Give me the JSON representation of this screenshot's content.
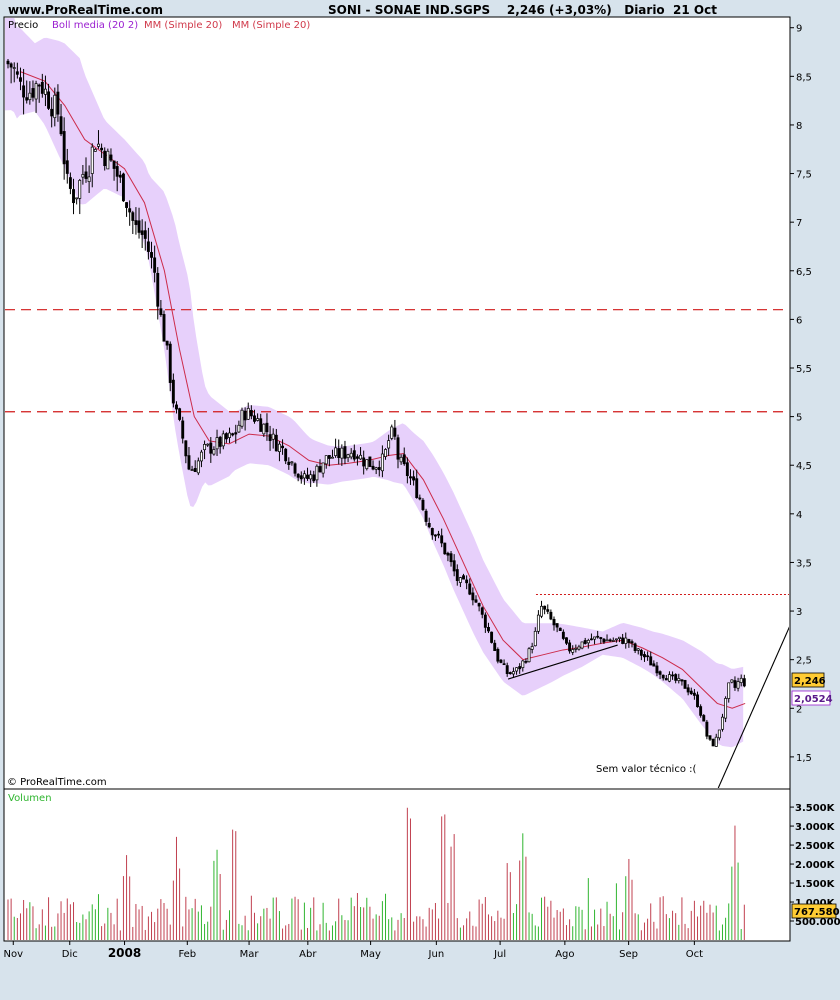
{
  "header": {
    "site": "www.ProRealTime.com",
    "title": "SONI - SONAE IND.SGPS    2,246 (+3,03%)   Diario  21 Oct"
  },
  "price_panel": {
    "legend": [
      {
        "label": "Precio",
        "color": "#000000"
      },
      {
        "label": "Boll media (20 2)",
        "color": "#9a1fd0"
      },
      {
        "label": "MM (Simple 20)",
        "color": "#d0394a"
      },
      {
        "label": "MM (Simple 20)",
        "color": "#d0394a"
      }
    ],
    "copyright": "© ProRealTime.com",
    "note": "Sem valor técnico :(",
    "last_price_label": "2,246",
    "ma_value_label": "2,0524"
  },
  "volume_panel": {
    "label": "Volumen",
    "last_volume_label": "767.580"
  },
  "colors": {
    "bollinger_band": "#e7d0fb",
    "moving_average": "#cc2b4a",
    "resistance_lines": "#d11a1a",
    "volume_up": "#2fb52f",
    "volume_down": "#c0404f",
    "last_price_badge": "#ffcc33",
    "ma_badge": "#ffffff"
  },
  "chart_data": [
    {
      "type": "candlestick",
      "y_ticks": [
        "9",
        "8,5",
        "8",
        "7,5",
        "7",
        "6,5",
        "6",
        "5,5",
        "5",
        "4,5",
        "4",
        "3,5",
        "3",
        "2,5",
        "2",
        "1,5"
      ],
      "y_tick_values": [
        9,
        8.5,
        8,
        7.5,
        7,
        6.5,
        6,
        5.5,
        5,
        4.5,
        4,
        3.5,
        3,
        2.5,
        2,
        1.5
      ],
      "ylim": [
        1.18,
        9.1
      ],
      "x_ticks": [
        "Nov",
        "Dic",
        "2008",
        "Feb",
        "Mar",
        "Abr",
        "May",
        "Jun",
        "Jul",
        "Ago",
        "Sep",
        "Oct"
      ],
      "x_tick_positions": [
        0.083,
        0.65,
        1.2,
        1.83,
        2.45,
        3.04,
        3.67,
        4.33,
        4.97,
        5.62,
        6.26,
        6.92
      ],
      "x_range_months": [
        0.0,
        7.88
      ],
      "horizontal_lines": [
        {
          "y": 6.1,
          "style": "dashed"
        },
        {
          "y": 5.05,
          "style": "dashed"
        },
        {
          "y": 3.17,
          "style": "dotted",
          "from_month": 5.33
        }
      ],
      "trend_lines": [
        {
          "from": [
            5.05,
            2.3
          ],
          "to": [
            6.15,
            2.65
          ]
        },
        {
          "from": [
            7.16,
            1.18
          ],
          "to": [
            7.88,
            2.85
          ]
        }
      ],
      "close_path": [
        [
          0.0,
          8.65
        ],
        [
          0.08,
          8.6
        ],
        [
          0.15,
          8.4
        ],
        [
          0.25,
          8.35
        ],
        [
          0.35,
          8.45
        ],
        [
          0.45,
          8.25
        ],
        [
          0.55,
          8.1
        ],
        [
          0.62,
          7.4
        ],
        [
          0.7,
          7.25
        ],
        [
          0.78,
          7.5
        ],
        [
          0.85,
          7.6
        ],
        [
          0.9,
          7.85
        ],
        [
          1.0,
          7.7
        ],
        [
          1.1,
          7.55
        ],
        [
          1.2,
          7.3
        ],
        [
          1.3,
          6.95
        ],
        [
          1.4,
          6.85
        ],
        [
          1.5,
          6.5
        ],
        [
          1.55,
          6.1
        ],
        [
          1.62,
          5.7
        ],
        [
          1.7,
          5.1
        ],
        [
          1.78,
          4.8
        ],
        [
          1.85,
          4.45
        ],
        [
          1.92,
          4.5
        ],
        [
          2.0,
          4.65
        ],
        [
          2.1,
          4.7
        ],
        [
          2.2,
          4.75
        ],
        [
          2.3,
          4.8
        ],
        [
          2.4,
          5.05
        ],
        [
          2.5,
          5.0
        ],
        [
          2.6,
          4.9
        ],
        [
          2.7,
          4.75
        ],
        [
          2.8,
          4.65
        ],
        [
          2.9,
          4.5
        ],
        [
          3.0,
          4.35
        ],
        [
          3.1,
          4.4
        ],
        [
          3.2,
          4.55
        ],
        [
          3.3,
          4.6
        ],
        [
          3.4,
          4.62
        ],
        [
          3.5,
          4.65
        ],
        [
          3.6,
          4.55
        ],
        [
          3.7,
          4.5
        ],
        [
          3.8,
          4.55
        ],
        [
          3.85,
          4.75
        ],
        [
          3.9,
          4.85
        ],
        [
          3.95,
          4.55
        ],
        [
          4.05,
          4.4
        ],
        [
          4.15,
          4.2
        ],
        [
          4.25,
          3.9
        ],
        [
          4.35,
          3.75
        ],
        [
          4.45,
          3.55
        ],
        [
          4.55,
          3.3
        ],
        [
          4.65,
          3.25
        ],
        [
          4.75,
          3.05
        ],
        [
          4.85,
          2.8
        ],
        [
          4.95,
          2.5
        ],
        [
          5.05,
          2.35
        ],
        [
          5.15,
          2.4
        ],
        [
          5.25,
          2.55
        ],
        [
          5.32,
          2.75
        ],
        [
          5.38,
          3.05
        ],
        [
          5.45,
          2.95
        ],
        [
          5.55,
          2.8
        ],
        [
          5.65,
          2.6
        ],
        [
          5.75,
          2.65
        ],
        [
          5.85,
          2.7
        ],
        [
          5.95,
          2.72
        ],
        [
          6.05,
          2.7
        ],
        [
          6.15,
          2.7
        ],
        [
          6.25,
          2.7
        ],
        [
          6.32,
          2.6
        ],
        [
          6.4,
          2.55
        ],
        [
          6.5,
          2.45
        ],
        [
          6.6,
          2.35
        ],
        [
          6.7,
          2.3
        ],
        [
          6.8,
          2.25
        ],
        [
          6.9,
          2.15
        ],
        [
          6.95,
          2.05
        ],
        [
          7.0,
          1.9
        ],
        [
          7.05,
          1.7
        ],
        [
          7.1,
          1.62
        ],
        [
          7.15,
          1.7
        ],
        [
          7.22,
          2.0
        ],
        [
          7.28,
          2.3
        ],
        [
          7.32,
          2.2
        ],
        [
          7.38,
          2.3
        ],
        [
          7.43,
          2.25
        ]
      ],
      "moving_average_path": [
        [
          0.15,
          8.55
        ],
        [
          0.4,
          8.45
        ],
        [
          0.6,
          8.2
        ],
        [
          0.8,
          7.85
        ],
        [
          1.0,
          7.7
        ],
        [
          1.2,
          7.55
        ],
        [
          1.4,
          7.2
        ],
        [
          1.6,
          6.5
        ],
        [
          1.75,
          5.7
        ],
        [
          1.9,
          5.0
        ],
        [
          2.05,
          4.75
        ],
        [
          2.25,
          4.72
        ],
        [
          2.45,
          4.82
        ],
        [
          2.65,
          4.8
        ],
        [
          2.85,
          4.7
        ],
        [
          3.05,
          4.55
        ],
        [
          3.25,
          4.5
        ],
        [
          3.45,
          4.52
        ],
        [
          3.65,
          4.55
        ],
        [
          3.85,
          4.6
        ],
        [
          4.0,
          4.62
        ],
        [
          4.2,
          4.35
        ],
        [
          4.4,
          3.95
        ],
        [
          4.6,
          3.5
        ],
        [
          4.8,
          3.05
        ],
        [
          5.0,
          2.7
        ],
        [
          5.2,
          2.5
        ],
        [
          5.4,
          2.55
        ],
        [
          5.6,
          2.6
        ],
        [
          5.8,
          2.63
        ],
        [
          6.0,
          2.67
        ],
        [
          6.2,
          2.7
        ],
        [
          6.4,
          2.62
        ],
        [
          6.6,
          2.52
        ],
        [
          6.8,
          2.4
        ],
        [
          7.0,
          2.2
        ],
        [
          7.15,
          2.05
        ],
        [
          7.3,
          2.0
        ],
        [
          7.43,
          2.05
        ]
      ],
      "bollinger_half_width": [
        [
          0.0,
          0.55
        ],
        [
          0.3,
          0.35
        ],
        [
          0.55,
          0.6
        ],
        [
          0.75,
          0.75
        ],
        [
          1.0,
          0.35
        ],
        [
          1.2,
          0.3
        ],
        [
          1.45,
          0.45
        ],
        [
          1.7,
          1.05
        ],
        [
          1.85,
          1.15
        ],
        [
          2.0,
          0.5
        ],
        [
          2.3,
          0.3
        ],
        [
          2.6,
          0.3
        ],
        [
          2.9,
          0.3
        ],
        [
          3.1,
          0.22
        ],
        [
          3.4,
          0.18
        ],
        [
          3.7,
          0.18
        ],
        [
          3.9,
          0.28
        ],
        [
          4.1,
          0.35
        ],
        [
          4.3,
          0.45
        ],
        [
          4.5,
          0.5
        ],
        [
          4.7,
          0.5
        ],
        [
          4.9,
          0.45
        ],
        [
          5.1,
          0.4
        ],
        [
          5.3,
          0.35
        ],
        [
          5.5,
          0.3
        ],
        [
          5.8,
          0.2
        ],
        [
          6.0,
          0.12
        ],
        [
          6.2,
          0.18
        ],
        [
          6.5,
          0.22
        ],
        [
          6.8,
          0.3
        ],
        [
          7.0,
          0.38
        ],
        [
          7.2,
          0.42
        ],
        [
          7.43,
          0.38
        ]
      ]
    },
    {
      "type": "bar",
      "y_ticks": [
        "3.500K",
        "3.000K",
        "2.500K",
        "2.000K",
        "1.500K",
        "1.000K",
        "500.000"
      ],
      "y_tick_values": [
        3500,
        3000,
        2500,
        2000,
        1500,
        1000,
        500
      ],
      "ylim": [
        0,
        3950
      ],
      "unit": "thousands",
      "peaks_month_volume": [
        [
          2.3,
          3300
        ],
        [
          4.4,
          3750
        ],
        [
          4.05,
          3820
        ],
        [
          5.2,
          2860
        ],
        [
          5.05,
          2180
        ],
        [
          6.26,
          2180
        ],
        [
          7.33,
          2650
        ],
        [
          2.12,
          2550
        ],
        [
          4.5,
          3000
        ],
        [
          1.22,
          2240
        ],
        [
          1.73,
          2300
        ]
      ]
    }
  ]
}
